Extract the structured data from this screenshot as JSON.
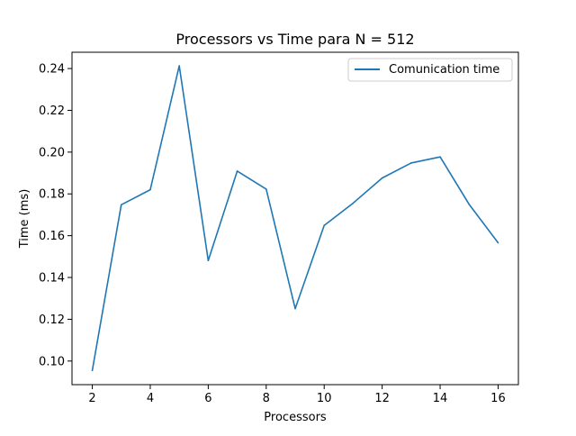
{
  "chart_data": {
    "type": "line",
    "title": "Processors vs Time para N = 512",
    "xlabel": "Processors",
    "ylabel": "Time (ms)",
    "xlim": [
      1.3,
      16.7
    ],
    "ylim": [
      0.0887,
      0.2478
    ],
    "xticks": [
      2,
      4,
      6,
      8,
      10,
      12,
      14,
      16
    ],
    "yticks": [
      0.1,
      0.12,
      0.14,
      0.16,
      0.18,
      0.2,
      0.22,
      0.24
    ],
    "xtick_labels": [
      "2",
      "4",
      "6",
      "8",
      "10",
      "12",
      "14",
      "16"
    ],
    "ytick_labels": [
      "0.10",
      "0.12",
      "0.14",
      "0.16",
      "0.18",
      "0.20",
      "0.22",
      "0.24"
    ],
    "grid": false,
    "legend_position": "top-right",
    "series": [
      {
        "name": "Comunication time",
        "color": "#1f77b4",
        "x": [
          2,
          3,
          4,
          5,
          6,
          7,
          8,
          9,
          10,
          11,
          12,
          13,
          14,
          15,
          16
        ],
        "y": [
          0.0955,
          0.1748,
          0.182,
          0.2413,
          0.1481,
          0.1909,
          0.1823,
          0.1251,
          0.1649,
          0.1756,
          0.1876,
          0.1948,
          0.1977,
          0.175,
          0.1566
        ]
      }
    ]
  }
}
